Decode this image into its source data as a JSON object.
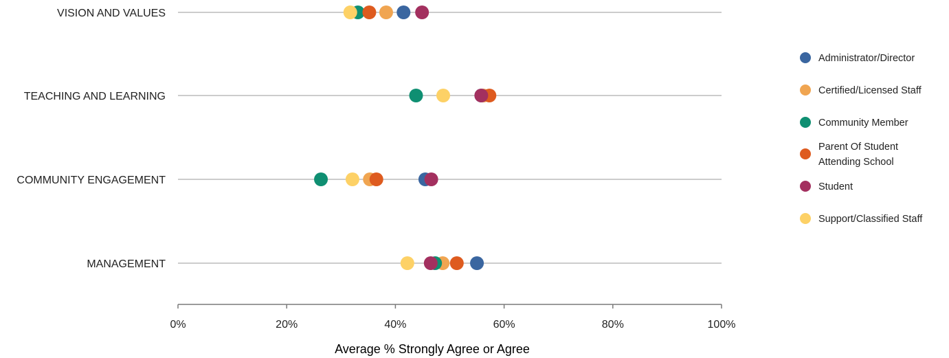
{
  "chart_data": {
    "type": "scatter",
    "categories": [
      "VISION AND VALUES",
      "TEACHING AND LEARNING",
      "COMMUNITY ENGAGEMENT",
      "MANAGEMENT"
    ],
    "xlabel": "Average % Strongly Agree or Agree",
    "xlim": [
      0,
      100
    ],
    "xticks": [
      "0%",
      "20%",
      "40%",
      "60%",
      "80%",
      "100%"
    ],
    "grid": false,
    "legend_position": "right",
    "series": [
      {
        "name": "Administrator/Director",
        "color": "#3a66a0",
        "values": [
          41.5,
          55.8,
          45.5,
          55
        ]
      },
      {
        "name": "Certified/Licensed Staff",
        "color": "#f0a551",
        "values": [
          38.3,
          56.2,
          35.3,
          48.7
        ]
      },
      {
        "name": "Community Member",
        "color": "#0f8f72",
        "values": [
          33.1,
          43.8,
          26.3,
          47.3
        ]
      },
      {
        "name": "Parent Of Student Attending School",
        "color": "#de5b1f",
        "values": [
          35.2,
          57.3,
          36.5,
          51.3
        ]
      },
      {
        "name": "Student",
        "color": "#a3305f",
        "values": [
          44.9,
          55.8,
          46.6,
          46.5
        ]
      },
      {
        "name": "Support/Classified Staff",
        "color": "#fdd166",
        "values": [
          31.7,
          48.8,
          32.1,
          42.2
        ]
      }
    ]
  }
}
